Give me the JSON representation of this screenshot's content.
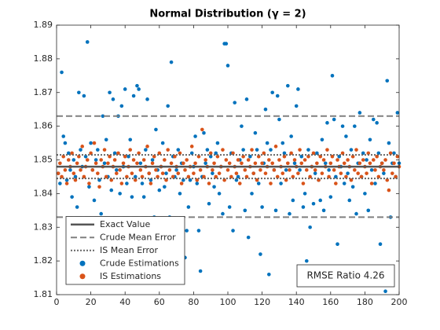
{
  "chart_data": {
    "type": "scatter",
    "title": "Normal Distribution (γ = 2)",
    "annotation": "RMSE Ratio 4.26",
    "xlim": [
      0,
      200
    ],
    "xticks": [
      0,
      20,
      40,
      60,
      80,
      100,
      120,
      140,
      160,
      180,
      200
    ],
    "ylim": [
      1.81,
      1.89
    ],
    "yticks": [
      1.81,
      1.82,
      1.83,
      1.84,
      1.85,
      1.86,
      1.87,
      1.88,
      1.89
    ],
    "legend": "lower left",
    "hlines": [
      {
        "name": "Exact Value",
        "color": "#555555",
        "style": "solid",
        "values": [
          1.848
        ]
      },
      {
        "name": "Crude Mean Error",
        "color": "#808080",
        "style": "dashed",
        "values": [
          1.833,
          1.863
        ]
      },
      {
        "name": "IS Mean Error",
        "color": "#666666",
        "style": "dotted",
        "values": [
          1.8445,
          1.8515
        ]
      }
    ],
    "x": [
      1,
      2,
      3,
      4,
      5,
      6,
      7,
      8,
      9,
      10,
      11,
      12,
      13,
      14,
      15,
      16,
      17,
      18,
      19,
      20,
      21,
      22,
      23,
      24,
      25,
      26,
      27,
      28,
      29,
      30,
      31,
      32,
      33,
      34,
      35,
      36,
      37,
      38,
      39,
      40,
      41,
      42,
      43,
      44,
      45,
      46,
      47,
      48,
      49,
      50,
      51,
      52,
      53,
      54,
      55,
      56,
      57,
      58,
      59,
      60,
      61,
      62,
      63,
      64,
      65,
      66,
      67,
      68,
      69,
      70,
      71,
      72,
      73,
      74,
      75,
      76,
      77,
      78,
      79,
      80,
      81,
      82,
      83,
      84,
      85,
      86,
      87,
      88,
      89,
      90,
      91,
      92,
      93,
      94,
      95,
      96,
      97,
      98,
      99,
      100,
      101,
      102,
      103,
      104,
      105,
      106,
      107,
      108,
      109,
      110,
      111,
      112,
      113,
      114,
      115,
      116,
      117,
      118,
      119,
      120,
      121,
      122,
      123,
      124,
      125,
      126,
      127,
      128,
      129,
      130,
      131,
      132,
      133,
      134,
      135,
      136,
      137,
      138,
      139,
      140,
      141,
      142,
      143,
      144,
      145,
      146,
      147,
      148,
      149,
      150,
      151,
      152,
      153,
      154,
      155,
      156,
      157,
      158,
      159,
      160,
      161,
      162,
      163,
      164,
      165,
      166,
      167,
      168,
      169,
      170,
      171,
      172,
      173,
      174,
      175,
      176,
      177,
      178,
      179,
      180,
      181,
      182,
      183,
      184,
      185,
      186,
      187,
      188,
      189,
      190,
      191,
      192,
      193,
      194,
      195,
      196,
      197,
      198,
      199,
      200
    ],
    "series": [
      {
        "name": "Crude Estimations",
        "color": "#0072BD",
        "values": [
          1.846,
          1.843,
          1.876,
          1.857,
          1.855,
          1.844,
          1.852,
          1.847,
          1.839,
          1.85,
          1.845,
          1.836,
          1.87,
          1.853,
          1.848,
          1.869,
          1.851,
          1.885,
          1.842,
          1.855,
          1.847,
          1.838,
          1.85,
          1.853,
          1.844,
          1.834,
          1.863,
          1.849,
          1.856,
          1.845,
          1.87,
          1.841,
          1.868,
          1.852,
          1.847,
          1.863,
          1.84,
          1.866,
          1.848,
          1.871,
          1.843,
          1.851,
          1.856,
          1.839,
          1.869,
          1.845,
          1.872,
          1.871,
          1.849,
          1.843,
          1.839,
          1.853,
          1.868,
          1.846,
          1.844,
          1.85,
          1.833,
          1.859,
          1.847,
          1.841,
          1.848,
          1.855,
          1.842,
          1.846,
          1.866,
          1.833,
          1.879,
          1.851,
          1.845,
          1.847,
          1.853,
          1.84,
          1.849,
          1.844,
          1.821,
          1.829,
          1.836,
          1.844,
          1.852,
          1.848,
          1.857,
          1.843,
          1.829,
          1.817,
          1.845,
          1.858,
          1.849,
          1.853,
          1.837,
          1.851,
          1.846,
          1.842,
          1.852,
          1.855,
          1.84,
          1.848,
          1.834,
          1.8845,
          1.8845,
          1.878,
          1.836,
          1.852,
          1.829,
          1.867,
          1.844,
          1.845,
          1.85,
          1.86,
          1.853,
          1.835,
          1.868,
          1.827,
          1.851,
          1.84,
          1.846,
          1.858,
          1.853,
          1.843,
          1.822,
          1.836,
          1.849,
          1.865,
          1.855,
          1.816,
          1.853,
          1.87,
          1.847,
          1.835,
          1.869,
          1.862,
          1.843,
          1.855,
          1.852,
          1.847,
          1.872,
          1.834,
          1.857,
          1.838,
          1.849,
          1.866,
          1.871,
          1.847,
          1.851,
          1.836,
          1.84,
          1.82,
          1.853,
          1.83,
          1.848,
          1.837,
          1.846,
          1.852,
          1.844,
          1.838,
          1.856,
          1.835,
          1.849,
          1.861,
          1.847,
          1.839,
          1.875,
          1.862,
          1.845,
          1.825,
          1.851,
          1.848,
          1.86,
          1.843,
          1.857,
          1.846,
          1.838,
          1.853,
          1.842,
          1.86,
          1.834,
          1.849,
          1.864,
          1.845,
          1.852,
          1.84,
          1.85,
          1.835,
          1.856,
          1.847,
          1.862,
          1.843,
          1.861,
          1.852,
          1.825,
          1.849,
          1.846,
          1.811,
          1.8735,
          1.855,
          1.833,
          1.849,
          1.852,
          1.845,
          1.864,
          1.849
        ]
      },
      {
        "name": "IS Estimations",
        "color": "#D95319",
        "values": [
          1.846,
          1.849,
          1.845,
          1.851,
          1.847,
          1.843,
          1.85,
          1.848,
          1.852,
          1.846,
          1.844,
          1.849,
          1.851,
          1.847,
          1.854,
          1.845,
          1.848,
          1.85,
          1.843,
          1.852,
          1.847,
          1.855,
          1.849,
          1.846,
          1.842,
          1.85,
          1.848,
          1.853,
          1.845,
          1.849,
          1.851,
          1.844,
          1.848,
          1.85,
          1.846,
          1.852,
          1.847,
          1.843,
          1.849,
          1.851,
          1.845,
          1.848,
          1.853,
          1.846,
          1.85,
          1.844,
          1.849,
          1.852,
          1.847,
          1.845,
          1.85,
          1.848,
          1.854,
          1.846,
          1.843,
          1.849,
          1.851,
          1.847,
          1.845,
          1.852,
          1.848,
          1.846,
          1.85,
          1.844,
          1.853,
          1.847,
          1.849,
          1.845,
          1.851,
          1.848,
          1.846,
          1.852,
          1.843,
          1.849,
          1.847,
          1.85,
          1.845,
          1.848,
          1.854,
          1.846,
          1.849,
          1.844,
          1.851,
          1.847,
          1.859,
          1.845,
          1.85,
          1.848,
          1.843,
          1.852,
          1.847,
          1.849,
          1.845,
          1.851,
          1.846,
          1.848,
          1.853,
          1.844,
          1.85,
          1.847,
          1.849,
          1.845,
          1.852,
          1.848,
          1.846,
          1.85,
          1.843,
          1.849,
          1.851,
          1.847,
          1.845,
          1.85,
          1.848,
          1.853,
          1.846,
          1.849,
          1.844,
          1.851,
          1.847,
          1.849,
          1.852,
          1.846,
          1.848,
          1.85,
          1.843,
          1.849,
          1.847,
          1.854,
          1.845,
          1.85,
          1.848,
          1.846,
          1.851,
          1.844,
          1.849,
          1.847,
          1.852,
          1.845,
          1.85,
          1.848,
          1.846,
          1.853,
          1.849,
          1.843,
          1.85,
          1.847,
          1.851,
          1.845,
          1.848,
          1.852,
          1.847,
          1.849,
          1.844,
          1.851,
          1.846,
          1.85,
          1.848,
          1.853,
          1.845,
          1.849,
          1.851,
          1.847,
          1.843,
          1.85,
          1.848,
          1.846,
          1.852,
          1.849,
          1.845,
          1.85,
          1.848,
          1.844,
          1.851,
          1.847,
          1.853,
          1.846,
          1.849,
          1.845,
          1.85,
          1.848,
          1.846,
          1.852,
          1.849,
          1.843,
          1.85,
          1.847,
          1.851,
          1.845,
          1.848,
          1.849,
          1.847,
          1.85,
          1.844,
          1.841,
          1.852,
          1.846,
          1.849,
          1.845,
          1.851,
          1.848
        ]
      }
    ]
  }
}
